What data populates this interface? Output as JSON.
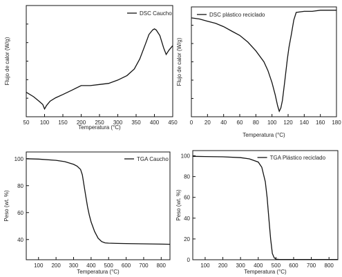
{
  "chart_data": [
    {
      "type": "line",
      "title": "",
      "xlabel": "Temperatura (°C)",
      "ylabel": "Flujo de calor (W/g)",
      "xlim": [
        50,
        450
      ],
      "ylim": [
        0,
        1
      ],
      "xticks": [
        50,
        100,
        150,
        200,
        250,
        300,
        350,
        400,
        450
      ],
      "yticks_labeled": false,
      "legend": "top-right",
      "grid": false,
      "series": [
        {
          "name": "DSC Caucho",
          "x": [
            50,
            70,
            85,
            95,
            100,
            105,
            115,
            130,
            150,
            175,
            200,
            225,
            250,
            275,
            300,
            325,
            345,
            360,
            375,
            385,
            395,
            400,
            405,
            415,
            425,
            432,
            440,
            450
          ],
          "y": [
            0.22,
            0.18,
            0.14,
            0.11,
            0.07,
            0.1,
            0.14,
            0.17,
            0.2,
            0.24,
            0.28,
            0.28,
            0.29,
            0.3,
            0.33,
            0.37,
            0.43,
            0.52,
            0.65,
            0.74,
            0.78,
            0.79,
            0.78,
            0.73,
            0.62,
            0.56,
            0.6,
            0.64
          ]
        }
      ]
    },
    {
      "type": "line",
      "title": "",
      "xlabel": "Temperatura (°C)",
      "ylabel": "Flujo de calor (W/g)",
      "xlim": [
        0,
        180
      ],
      "ylim": [
        0,
        1
      ],
      "xticks": [
        0,
        20,
        40,
        60,
        80,
        100,
        120,
        140,
        160,
        180
      ],
      "yticks_labeled": false,
      "legend": "top-left",
      "grid": false,
      "series": [
        {
          "name": "DSC plástico reciclado",
          "x": [
            0,
            10,
            20,
            30,
            40,
            50,
            60,
            70,
            80,
            90,
            95,
            100,
            104,
            107,
            109,
            111,
            113,
            116,
            119,
            121,
            124,
            127,
            130,
            140,
            150,
            160,
            170,
            180
          ],
          "y": [
            0.9,
            0.89,
            0.87,
            0.85,
            0.82,
            0.78,
            0.74,
            0.68,
            0.6,
            0.5,
            0.42,
            0.31,
            0.2,
            0.1,
            0.05,
            0.08,
            0.15,
            0.33,
            0.52,
            0.63,
            0.75,
            0.88,
            0.95,
            0.96,
            0.96,
            0.97,
            0.97,
            0.97
          ]
        }
      ]
    },
    {
      "type": "line",
      "title": "",
      "xlabel": "Temperatura (°C)",
      "ylabel": "Peso (wt. %)",
      "xlim": [
        30,
        850
      ],
      "ylim": [
        25,
        105
      ],
      "xticks": [
        100,
        200,
        300,
        400,
        500,
        600,
        700,
        800
      ],
      "yticks": [
        40,
        60,
        80,
        100
      ],
      "legend": "top-right",
      "grid": false,
      "series": [
        {
          "name": "TGA Caucho",
          "x": [
            30,
            100,
            200,
            250,
            300,
            320,
            340,
            350,
            360,
            370,
            380,
            390,
            400,
            420,
            440,
            460,
            480,
            500,
            550,
            600,
            700,
            800,
            850
          ],
          "y": [
            100,
            99.7,
            98.8,
            97.8,
            95.8,
            94.5,
            92,
            88,
            80,
            72,
            64,
            58,
            53,
            46,
            41,
            38.5,
            37.5,
            37.3,
            37.1,
            37,
            36.8,
            36.6,
            36.5
          ]
        }
      ]
    },
    {
      "type": "line",
      "title": "",
      "xlabel": "Temperatura (°C)",
      "ylabel": "Peso (wt. %)",
      "xlim": [
        30,
        850
      ],
      "ylim": [
        0,
        105
      ],
      "xticks": [
        100,
        200,
        300,
        400,
        500,
        600,
        700,
        800
      ],
      "yticks": [
        0,
        20,
        40,
        60,
        80,
        100
      ],
      "legend": "top-right",
      "grid": false,
      "series": [
        {
          "name": "TGA Plástico reciclado",
          "x": [
            30,
            100,
            200,
            300,
            350,
            400,
            420,
            440,
            450,
            460,
            470,
            480,
            490,
            500,
            520,
            600,
            700,
            800,
            850
          ],
          "y": [
            99.5,
            99.3,
            99,
            98.2,
            97,
            94,
            89,
            75,
            60,
            40,
            20,
            6,
            2,
            0.5,
            0.2,
            0.2,
            0.2,
            0.2,
            0.2
          ]
        }
      ]
    }
  ]
}
